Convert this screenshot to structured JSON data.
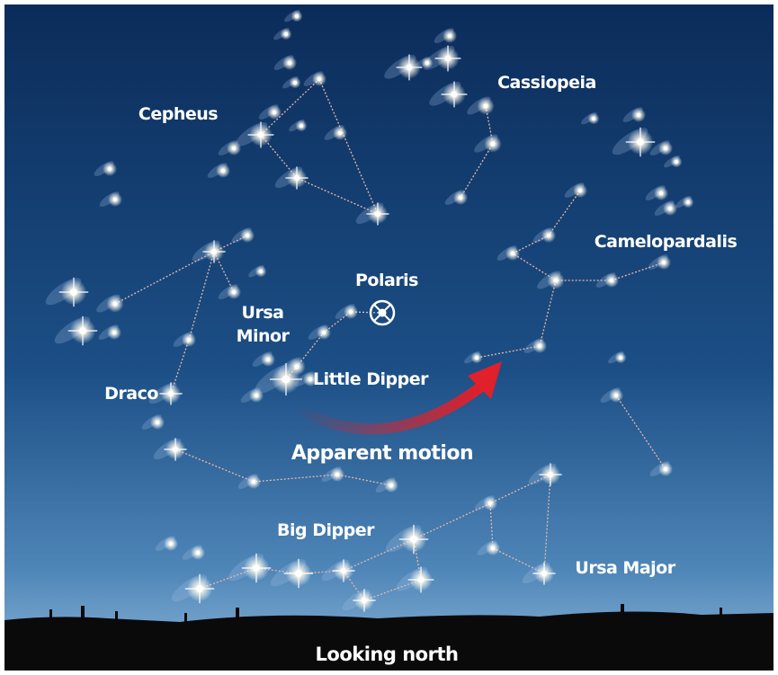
{
  "labels": {
    "cepheus": "Cepheus",
    "cassiopeia": "Cassiopeia",
    "camelopardalis": "Camelopardalis",
    "polaris": "Polaris",
    "ursa_minor": [
      "Ursa",
      "Minor"
    ],
    "little_dipper": "Little Dipper",
    "draco": "Draco",
    "apparent_motion": "Apparent motion",
    "big_dipper": "Big Dipper",
    "ursa_major": "Ursa Major",
    "looking_north": "Looking north"
  }
}
